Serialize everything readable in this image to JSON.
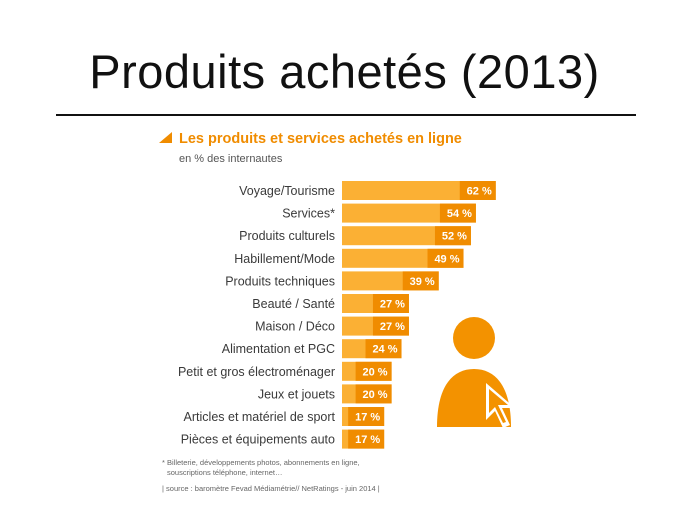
{
  "slide": {
    "title": "Produits achetés (2013)"
  },
  "chart_data": {
    "type": "bar",
    "orientation": "horizontal",
    "title": "Les produits et services achetés en ligne",
    "subtitle": "en % des internautes",
    "categories": [
      "Voyage/Tourisme",
      "Services*",
      "Produits culturels",
      "Habillement/Mode",
      "Produits techniques",
      "Beauté / Santé",
      "Maison / Déco",
      "Alimentation et PGC",
      "Petit et gros électroménager",
      "Jeux et jouets",
      "Articles et matériel de sport",
      "Pièces et équipements auto"
    ],
    "values": [
      62,
      54,
      52,
      49,
      39,
      27,
      27,
      24,
      20,
      20,
      17,
      17
    ],
    "value_labels": [
      "62 %",
      "54 %",
      "52 %",
      "49 %",
      "39 %",
      "27 %",
      "27 %",
      "24 %",
      "20 %",
      "20 %",
      "17 %",
      "17 %"
    ],
    "unit": "%",
    "footnote_1": "* Billeterie, développements photos, abonnements en ligne,",
    "footnote_2": "souscriptions téléphone, internet…",
    "source": "| source : baromètre Fevad Médiamétrie// NetRatings - juin 2014 |",
    "colors": {
      "bar_light": "#fbb034",
      "bar_dark": "#f08c00",
      "icon": "#f39200",
      "title": "#f08c00"
    }
  },
  "icons": {
    "title_marker": "triangle-marker-icon",
    "person": "person-icon",
    "cursor": "cursor-arrow-icon"
  }
}
